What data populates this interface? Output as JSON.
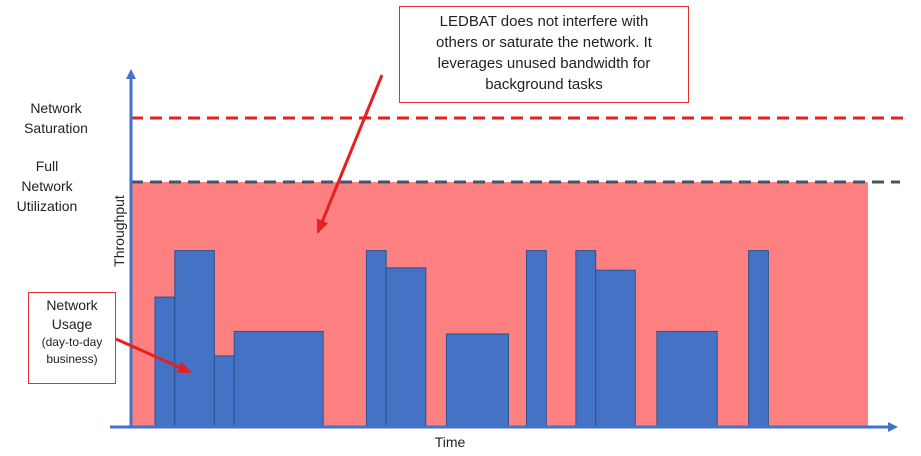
{
  "labels": {
    "saturation": [
      "Network",
      "Saturation"
    ],
    "full_util": [
      "Full",
      "Network",
      "Utilization"
    ],
    "y_axis": "Throughput",
    "x_axis": "Time"
  },
  "callouts": {
    "ledbat": {
      "lines": [
        "LEDBAT does not interfere with",
        "others or saturate the network.  It",
        "leverages unused bandwidth for",
        "background tasks"
      ]
    },
    "usage": {
      "lines": [
        "Network",
        "Usage"
      ],
      "sub_lines": [
        "(day-to-day",
        "business)"
      ]
    }
  },
  "colors": {
    "axis": "#4472c4",
    "bars": "#4472c4",
    "unused_area": "#ff8080",
    "saturation_line": "#e52020",
    "utilization_line": "#44546a",
    "callout_border": "#e03030",
    "arrow": "#e52020"
  },
  "chart_data": {
    "type": "bar",
    "description_levels": {
      "network_usage": "blue bars",
      "full_network_utilization": "dashed line",
      "network_saturation": "dashed line"
    },
    "levels": {
      "full_network_utilization": 100,
      "network_saturation": 126
    },
    "bars": [
      {
        "start": 0.0,
        "end": 2.2,
        "value": 53
      },
      {
        "start": 2.2,
        "end": 6.6,
        "value": 72
      },
      {
        "start": 6.6,
        "end": 8.8,
        "value": 29
      },
      {
        "start": 8.8,
        "end": 18.7,
        "value": 39
      },
      {
        "start": 23.5,
        "end": 25.7,
        "value": 72
      },
      {
        "start": 25.7,
        "end": 30.1,
        "value": 65
      },
      {
        "start": 32.4,
        "end": 39.3,
        "value": 38
      },
      {
        "start": 41.3,
        "end": 43.5,
        "value": 72
      },
      {
        "start": 46.8,
        "end": 49.0,
        "value": 72
      },
      {
        "start": 49.0,
        "end": 53.4,
        "value": 64
      },
      {
        "start": 55.8,
        "end": 62.5,
        "value": 39
      },
      {
        "start": 66.0,
        "end": 68.2,
        "value": 72
      }
    ],
    "x_range": [
      0,
      72.6
    ],
    "y_range": [
      0,
      100
    ]
  }
}
